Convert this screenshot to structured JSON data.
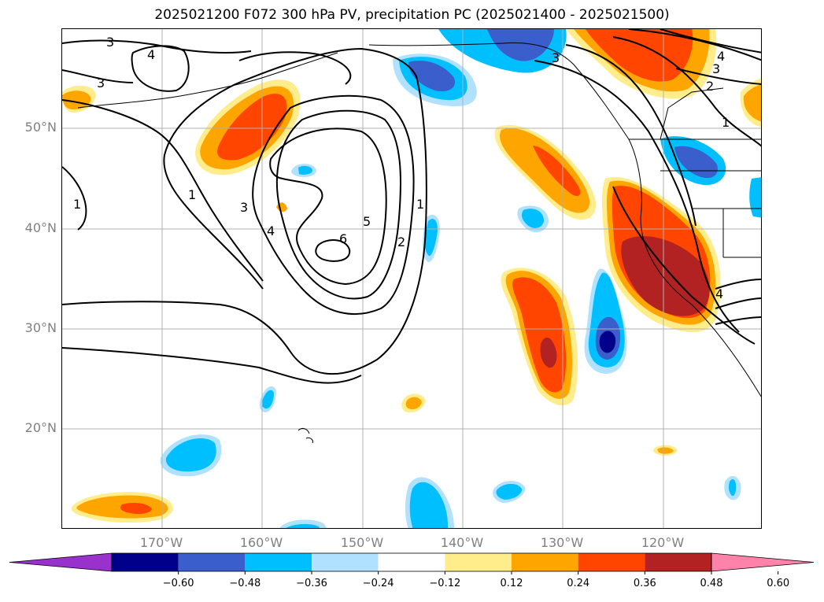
{
  "title": "2025021200 F072 300 hPa PV, precipitation PC (2025021400 - 2025021500)",
  "lat_labels": [
    "50°N",
    "40°N",
    "30°N",
    "20°N"
  ],
  "lon_labels": [
    "170°W",
    "160°W",
    "150°W",
    "140°W",
    "130°W",
    "120°W"
  ],
  "contour_labels": [
    "3",
    "4",
    "3",
    "1",
    "1",
    "3",
    "4",
    "5",
    "6",
    "2",
    "1",
    "3",
    "4",
    "3",
    "2",
    "1",
    "4"
  ],
  "colorbar": {
    "ticks": [
      "−0.60",
      "−0.48",
      "−0.36",
      "−0.24",
      "−0.12",
      "0.12",
      "0.24",
      "0.36",
      "0.48",
      "0.60"
    ],
    "colors": [
      "#9932cc",
      "#00008b",
      "#3a5fcd",
      "#00bfff",
      "#b0e2ff",
      "#ffffff",
      "#ffec8b",
      "#ffa500",
      "#ff4500",
      "#b22222",
      "#ff82ab"
    ]
  },
  "fill_colors": {
    "light_blue": "#b0e2ff",
    "blue": "#00bfff",
    "mid_blue": "#3a5fcd",
    "dark_blue": "#00008b",
    "yellow": "#ffec8b",
    "orange": "#ffa500",
    "red_orange": "#ff4500",
    "dark_red": "#b22222"
  }
}
